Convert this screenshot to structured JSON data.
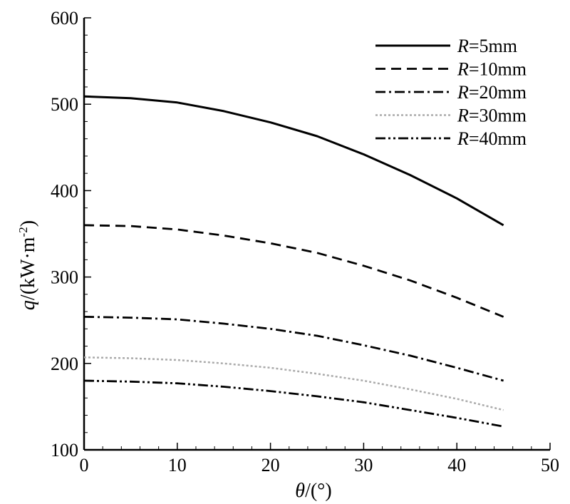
{
  "chart_data": {
    "type": "line",
    "title": "",
    "xlabel": {
      "var": "θ",
      "unit": "/(°)"
    },
    "ylabel": {
      "var": "q",
      "unit": "/(kW·m",
      "sup": "-2",
      "close": ")"
    },
    "xlim": [
      0,
      50
    ],
    "ylim": [
      100,
      600
    ],
    "xticks": [
      0,
      10,
      20,
      30,
      40,
      50
    ],
    "yticks": [
      100,
      200,
      300,
      400,
      500,
      600
    ],
    "grid": false,
    "legend_position": "top-right",
    "series": [
      {
        "name": "R=5mm",
        "name_var": "R",
        "name_rest": "=5mm",
        "style": "solid",
        "color": "#000000",
        "x": [
          0,
          5,
          10,
          15,
          20,
          25,
          30,
          35,
          40,
          45
        ],
        "y": [
          509,
          507,
          502,
          492,
          479,
          463,
          442,
          418,
          391,
          360
        ]
      },
      {
        "name": "R=10mm",
        "name_var": "R",
        "name_rest": "=10mm",
        "style": "dash",
        "color": "#000000",
        "x": [
          0,
          5,
          10,
          15,
          20,
          25,
          30,
          35,
          40,
          45
        ],
        "y": [
          360,
          359,
          355,
          348,
          339,
          328,
          313,
          296,
          276,
          254
        ]
      },
      {
        "name": "R=20mm",
        "name_var": "R",
        "name_rest": "=20mm",
        "style": "dashdot",
        "color": "#000000",
        "x": [
          0,
          5,
          10,
          15,
          20,
          25,
          30,
          35,
          40,
          45
        ],
        "y": [
          254,
          253,
          251,
          246,
          240,
          232,
          221,
          209,
          195,
          180
        ]
      },
      {
        "name": "R=30mm",
        "name_var": "R",
        "name_rest": "=30mm",
        "style": "dot",
        "color": "#aaaaaa",
        "x": [
          0,
          5,
          10,
          15,
          20,
          25,
          30,
          35,
          40,
          45
        ],
        "y": [
          207,
          206,
          204,
          200,
          195,
          188,
          180,
          170,
          159,
          146
        ]
      },
      {
        "name": "R=40mm",
        "name_var": "R",
        "name_rest": "=40mm",
        "style": "dashdotdot",
        "color": "#000000",
        "x": [
          0,
          5,
          10,
          15,
          20,
          25,
          30,
          35,
          40,
          45
        ],
        "y": [
          180,
          179,
          177,
          173,
          168,
          162,
          155,
          146,
          137,
          127
        ]
      }
    ]
  }
}
